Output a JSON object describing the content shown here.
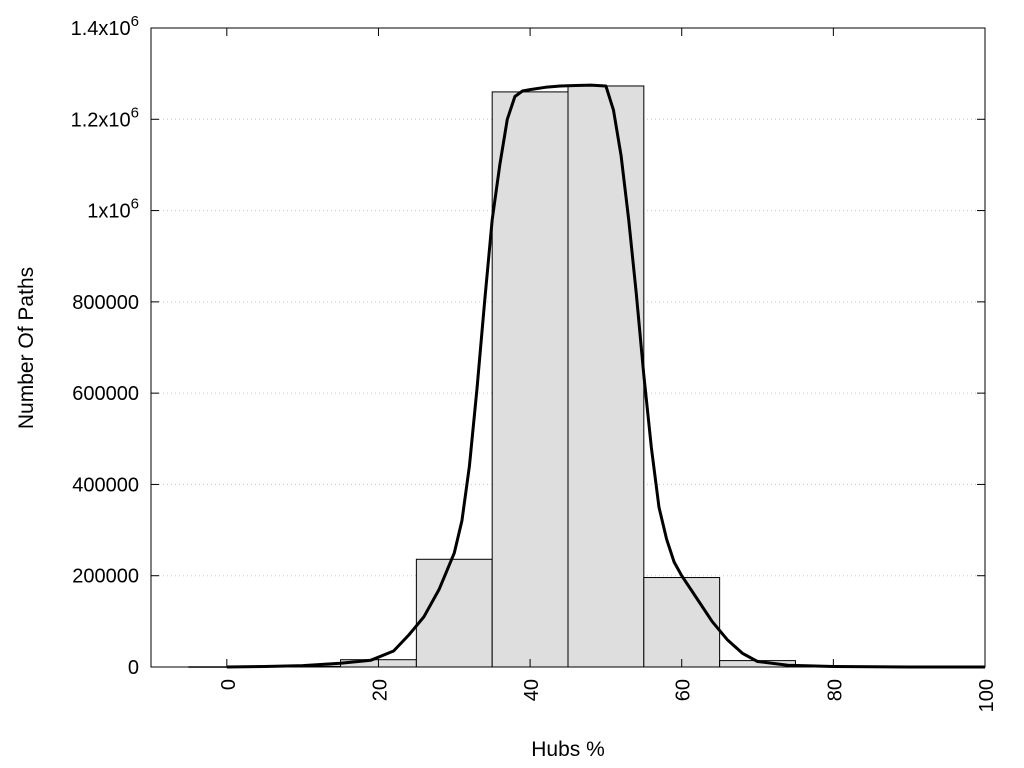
{
  "chart_data": {
    "type": "bar",
    "xlabel": "Hubs %",
    "ylabel": "Number Of Paths",
    "xlim": [
      -10,
      100
    ],
    "ylim": [
      0,
      1400000
    ],
    "grid": "horizontal dotted",
    "x_ticks": [
      {
        "value": 0,
        "label": "0"
      },
      {
        "value": 20,
        "label": "20"
      },
      {
        "value": 40,
        "label": "40"
      },
      {
        "value": 60,
        "label": "60"
      },
      {
        "value": 80,
        "label": "80"
      },
      {
        "value": 100,
        "label": "100"
      }
    ],
    "y_ticks": [
      {
        "value": 0,
        "base": "0",
        "sup": ""
      },
      {
        "value": 200000,
        "base": "200000",
        "sup": ""
      },
      {
        "value": 400000,
        "base": "400000",
        "sup": ""
      },
      {
        "value": 600000,
        "base": "600000",
        "sup": ""
      },
      {
        "value": 800000,
        "base": "800000",
        "sup": ""
      },
      {
        "value": 1000000,
        "base": "1x10",
        "sup": "6"
      },
      {
        "value": 1200000,
        "base": "1.2x10",
        "sup": "6"
      },
      {
        "value": 1400000,
        "base": "1.4x10",
        "sup": "6"
      }
    ],
    "bars": [
      {
        "center": 0,
        "width": 10,
        "value": 500
      },
      {
        "center": 10,
        "width": 10,
        "value": 1500
      },
      {
        "center": 20,
        "width": 10,
        "value": 16000
      },
      {
        "center": 30,
        "width": 10,
        "value": 236000
      },
      {
        "center": 40,
        "width": 10,
        "value": 1260000
      },
      {
        "center": 50,
        "width": 10,
        "value": 1273000
      },
      {
        "center": 60,
        "width": 10,
        "value": 196000
      },
      {
        "center": 70,
        "width": 10,
        "value": 14000
      },
      {
        "center": 80,
        "width": 10,
        "value": 1500
      },
      {
        "center": 90,
        "width": 10,
        "value": 500
      }
    ],
    "curve": {
      "x": [
        0,
        5,
        10,
        15,
        19,
        22,
        24,
        26,
        28,
        30,
        31,
        32,
        33,
        34,
        35,
        36,
        37,
        38,
        39,
        40,
        42,
        44,
        46,
        48,
        50,
        51,
        52,
        53,
        54,
        55,
        56,
        57,
        58,
        59,
        60,
        62,
        64,
        66,
        68,
        70,
        74,
        80,
        90,
        100
      ],
      "y": [
        0,
        1000,
        3000,
        8000,
        15000,
        35000,
        70000,
        110000,
        170000,
        250000,
        320000,
        440000,
        610000,
        800000,
        980000,
        1100000,
        1200000,
        1250000,
        1262000,
        1265000,
        1270000,
        1273000,
        1274000,
        1275000,
        1273000,
        1220000,
        1120000,
        980000,
        820000,
        640000,
        480000,
        350000,
        280000,
        230000,
        200000,
        150000,
        100000,
        60000,
        30000,
        12000,
        4000,
        1000,
        0,
        0
      ]
    }
  }
}
